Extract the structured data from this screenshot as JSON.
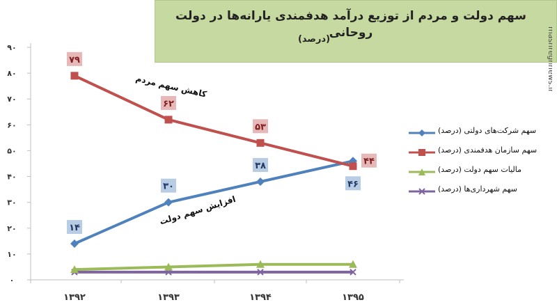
{
  "title": "سهم دولت و مردم از توزیع درآمد هدفمندی یارانه‌ها در دولت روحانی",
  "subtitle": "(درصد)",
  "watermark": {
    "text": "mashreghnews.ir"
  },
  "annotations": [
    "کاهش سهم مردم",
    "افزایش سهم دولت"
  ],
  "chart_data": {
    "type": "line",
    "categories": [
      "۱۳۹۲",
      "۱۳۹۳",
      "۱۳۹۴",
      "۱۳۹۵"
    ],
    "ylim": [
      0,
      90
    ],
    "yticks": [
      0,
      10,
      20,
      30,
      40,
      50,
      60,
      70,
      80,
      90
    ],
    "ytick_labels": [
      "۰",
      "۱۰",
      "۲۰",
      "۳۰",
      "۴۰",
      "۵۰",
      "۶۰",
      "۷۰",
      "۸۰",
      "۹۰"
    ],
    "grid": false,
    "legend_position": "right",
    "series": [
      {
        "name": "سهم شرکت‌های دولتی (درصد)",
        "color": "#4f81bd",
        "marker": "diamond",
        "values": [
          14,
          30,
          38,
          46
        ],
        "labels": [
          "۱۴",
          "۳۰",
          "۳۸",
          "۴۶"
        ],
        "label_bg": "#b8cce4",
        "label_color": "#1f3864"
      },
      {
        "name": "سهم سازمان هدفمندی (درصد)",
        "color": "#c0504d",
        "marker": "square",
        "values": [
          79,
          62,
          53,
          44
        ],
        "labels": [
          "۷۹",
          "۶۲",
          "۵۳",
          "۴۴"
        ],
        "label_bg": "#e6b9b8",
        "label_color": "#7f1f1f"
      },
      {
        "name": "مالیات سهم دولت (درصد)",
        "color": "#9bbb59",
        "marker": "triangle",
        "values": [
          4,
          5,
          6,
          6
        ]
      },
      {
        "name": "سهم شهرداری‌ها (درصد)",
        "color": "#8064a2",
        "marker": "x",
        "values": [
          3,
          3,
          3,
          3
        ]
      }
    ]
  }
}
